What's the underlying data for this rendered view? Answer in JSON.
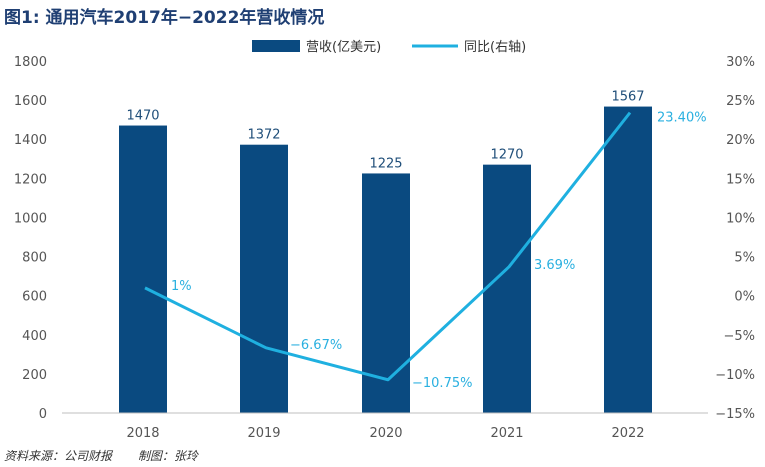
{
  "title": "图1: 通用汽车2017年−2022年营收情况",
  "source": "资料来源：公司财报",
  "author": "制图：张玲",
  "colors": {
    "bar": "#0a4a80",
    "line": "#1fb0e0",
    "title": "#1f3f73"
  },
  "chart_data": {
    "type": "bar",
    "categories": [
      "2018",
      "2019",
      "2020",
      "2021",
      "2022"
    ],
    "series": [
      {
        "name": "营收(亿美元)",
        "kind": "bar",
        "axis": "left",
        "values": [
          1470,
          1372,
          1225,
          1270,
          1567
        ],
        "labels": [
          "1470",
          "1372",
          "1225",
          "1270",
          "1567"
        ]
      },
      {
        "name": "同比(右轴)",
        "kind": "line",
        "axis": "right",
        "values": [
          1,
          -6.67,
          -10.75,
          3.69,
          23.4
        ],
        "labels": [
          "1%",
          "−6.67%",
          "−10.75%",
          "3.69%",
          "23.40%"
        ]
      }
    ],
    "ylim_left": [
      0,
      1800
    ],
    "yticks_left": [
      "0",
      "200",
      "400",
      "600",
      "800",
      "1000",
      "1200",
      "1400",
      "1600",
      "1800"
    ],
    "ylim_right": [
      -15,
      30
    ],
    "yticks_right": [
      "−15%",
      "−10%",
      "−5%",
      "0%",
      "5%",
      "10%",
      "15%",
      "20%",
      "25%",
      "30%"
    ],
    "legend": "top-center",
    "grid": false
  }
}
